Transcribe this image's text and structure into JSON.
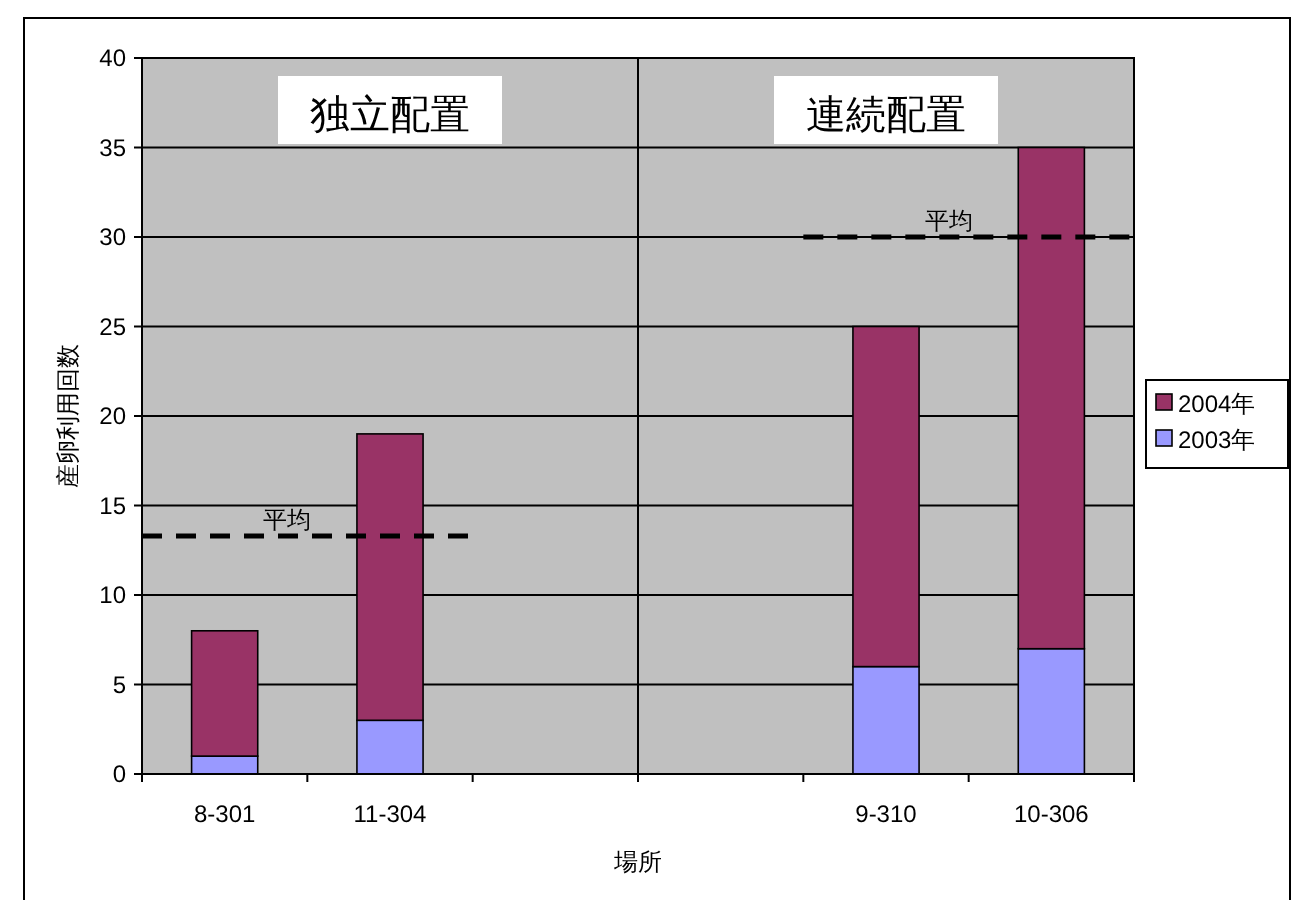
{
  "chart_data": {
    "type": "bar",
    "stacked": true,
    "xlabel": "場所",
    "ylabel": "産卵利用回数",
    "categories": [
      "8-301",
      "11-304",
      null,
      null,
      "9-310",
      "10-306"
    ],
    "series": [
      {
        "name": "2003年",
        "color": "#9999ff",
        "values": [
          1,
          3,
          null,
          null,
          6,
          7
        ]
      },
      {
        "name": "2004年",
        "color": "#993366",
        "values": [
          7,
          16,
          null,
          null,
          19,
          28
        ]
      }
    ],
    "ylim": [
      0,
      40
    ],
    "yticks": [
      0,
      5,
      10,
      15,
      20,
      25,
      30,
      35,
      40
    ],
    "grid": "y",
    "legend": "right",
    "ref_lines": [
      {
        "axis": "y",
        "value": 13.3,
        "label": "平均",
        "color": "#000000",
        "line_style": "dashed"
      },
      {
        "axis": "y",
        "value": 30,
        "label": "平均",
        "color": "#000000",
        "line_style": "dashed"
      }
    ],
    "annotations": [
      "独立配置",
      "連続配置"
    ]
  }
}
